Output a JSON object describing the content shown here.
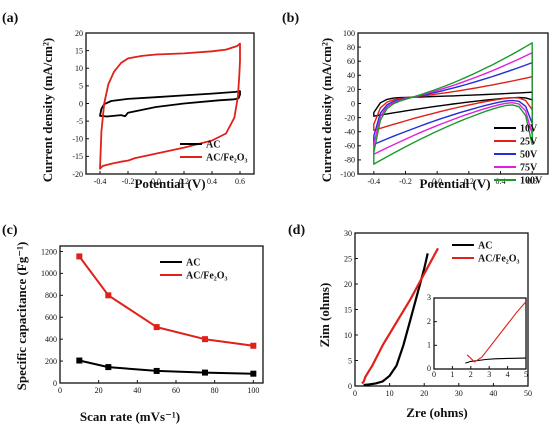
{
  "chart_data": [
    {
      "panel": "(a)",
      "type": "line",
      "xlabel": "Potential (V)",
      "ylabel": "Current density (mA/cm²)",
      "xlim": [
        -0.5,
        0.7
      ],
      "ylim": [
        -20,
        20
      ],
      "xticks": [
        -0.4,
        -0.2,
        0.0,
        0.2,
        0.4,
        0.6
      ],
      "yticks": [
        -20,
        -15,
        -10,
        -5,
        0,
        5,
        10,
        15,
        20
      ],
      "xtick_labels": [
        "-0.4",
        "-0.2",
        "0.0",
        "0.2",
        "0.4",
        "0.6"
      ],
      "ytick_labels": [
        "-20",
        "-15",
        "-10",
        "-5",
        "0",
        "5",
        "10",
        "15",
        "20"
      ],
      "legend_position": "bottom-right",
      "series": [
        {
          "name": "AC",
          "color": "#000000",
          "x": [
            -0.4,
            -0.39,
            -0.37,
            -0.32,
            -0.2,
            0.0,
            0.2,
            0.4,
            0.57,
            0.6,
            0.6,
            0.59,
            0.56,
            0.45,
            0.2,
            0.0,
            -0.2,
            -0.22,
            -0.25,
            -0.35,
            -0.4
          ],
          "y": [
            -3.5,
            -1.5,
            -0.2,
            0.7,
            1.3,
            1.8,
            2.3,
            2.8,
            3.3,
            3.5,
            2.5,
            1.5,
            1.2,
            0.9,
            0.0,
            -1.0,
            -2.6,
            -3.6,
            -3.3,
            -3.7,
            -3.5
          ]
        },
        {
          "name": "AC/Fe₂O₃",
          "color": "#e0201a",
          "x": [
            -0.4,
            -0.39,
            -0.37,
            -0.34,
            -0.3,
            -0.25,
            -0.2,
            -0.1,
            0.0,
            0.2,
            0.4,
            0.5,
            0.58,
            0.6,
            0.6,
            0.595,
            0.585,
            0.56,
            0.5,
            0.4,
            0.2,
            0.0,
            -0.15,
            -0.2,
            -0.25,
            -0.3,
            -0.38,
            -0.4
          ],
          "y": [
            -18.5,
            -8,
            0,
            5.5,
            9,
            11.5,
            12.8,
            13.5,
            13.9,
            14.2,
            14.8,
            15.3,
            16.3,
            17.0,
            12,
            8,
            2,
            -4,
            -8.5,
            -10.5,
            -12.5,
            -14.2,
            -15.5,
            -16.2,
            -16.5,
            -16.9,
            -17.7,
            -18.5
          ]
        }
      ]
    },
    {
      "panel": "(b)",
      "type": "line",
      "xlabel": "Potential (V)",
      "ylabel": "Current density (mA/cm²)",
      "xlim": [
        -0.5,
        0.7
      ],
      "ylim": [
        -100,
        100
      ],
      "xticks": [
        -0.4,
        -0.2,
        0.0,
        0.2,
        0.4,
        0.6
      ],
      "yticks": [
        -100,
        -80,
        -60,
        -40,
        -20,
        0,
        20,
        40,
        60,
        80,
        100
      ],
      "xtick_labels": [
        "-0.4",
        "-0.2",
        "0.0",
        "0.2",
        "0.4",
        "0.6"
      ],
      "ytick_labels": [
        "-100",
        "-80",
        "-60",
        "-40",
        "-20",
        "0",
        "20",
        "40",
        "60",
        "80",
        "100"
      ],
      "legend_position": "bottom-right",
      "series": [
        {
          "name": "10V",
          "color": "#000000",
          "bottom_start": -18,
          "top_start": 8,
          "top_end": 16,
          "bottom_end": 10
        },
        {
          "name": "25V",
          "color": "#e0201a",
          "bottom_start": -38,
          "top_start": 5,
          "top_end": 38,
          "bottom_end": 12
        },
        {
          "name": "50V",
          "color": "#1f2fd6",
          "bottom_start": -58,
          "top_start": 2,
          "top_end": 58,
          "bottom_end": 10
        },
        {
          "name": "75V",
          "color": "#e020e0",
          "bottom_start": -72,
          "top_start": 0,
          "top_end": 72,
          "bottom_end": 8
        },
        {
          "name": "100V",
          "color": "#1a9a2a",
          "bottom_start": -86,
          "top_start": -2,
          "top_end": 86,
          "bottom_end": 6
        }
      ]
    },
    {
      "panel": "(c)",
      "type": "line",
      "xlabel": "Scan rate (mVs⁻¹)",
      "ylabel": "Specific capacitance (Fg⁻¹)",
      "xlim": [
        0,
        105
      ],
      "ylim": [
        0,
        1250
      ],
      "xticks": [
        0,
        20,
        40,
        60,
        80,
        100
      ],
      "yticks": [
        0,
        200,
        400,
        600,
        800,
        1000,
        1200
      ],
      "xtick_labels": [
        "0",
        "20",
        "40",
        "60",
        "80",
        "100"
      ],
      "ytick_labels": [
        "0",
        "200",
        "400",
        "600",
        "800",
        "1000",
        "1200"
      ],
      "legend_position": "top-right",
      "x": [
        10,
        25,
        50,
        75,
        100
      ],
      "series": [
        {
          "name": "AC",
          "color": "#000000",
          "values": [
            205,
            145,
            110,
            95,
            85
          ]
        },
        {
          "name": "AC/Fe₂O₃",
          "color": "#e0201a",
          "values": [
            1155,
            800,
            510,
            400,
            340
          ]
        }
      ]
    },
    {
      "panel": "(d)",
      "type": "line",
      "xlabel": "Zre (ohms)",
      "ylabel": "Zim (ohms)",
      "xlim": [
        0,
        50
      ],
      "ylim": [
        0,
        30
      ],
      "xticks": [
        0,
        10,
        20,
        30,
        40,
        50
      ],
      "yticks": [
        0,
        5,
        10,
        15,
        20,
        25,
        30
      ],
      "xtick_labels": [
        "0",
        "10",
        "20",
        "30",
        "40",
        "50"
      ],
      "ytick_labels": [
        "0",
        "5",
        "10",
        "15",
        "20",
        "25",
        "30"
      ],
      "legend_position": "top-right",
      "series": [
        {
          "name": "AC",
          "color": "#000000",
          "x": [
            2.5,
            4,
            6,
            8,
            10,
            12,
            14,
            16,
            18,
            20,
            21
          ],
          "y": [
            0.2,
            0.3,
            0.5,
            0.9,
            2,
            4,
            8,
            13,
            18,
            23,
            26
          ]
        },
        {
          "name": "AC/Fe₂O₃",
          "color": "#e0201a",
          "x": [
            2,
            2.5,
            3,
            5,
            8,
            12,
            16,
            20,
            24
          ],
          "y": [
            0.5,
            0.8,
            1.8,
            4,
            8,
            12.5,
            17,
            22,
            27
          ]
        }
      ],
      "inset": {
        "xlim": [
          0,
          5
        ],
        "ylim": [
          0,
          3
        ],
        "xticks": [
          0,
          1,
          2,
          3,
          4,
          5
        ],
        "yticks": [
          0,
          1,
          2,
          3
        ],
        "xtick_labels": [
          "0",
          "1",
          "2",
          "3",
          "4",
          "5"
        ],
        "ytick_labels": [
          "0",
          "1",
          "2",
          "3"
        ],
        "series": [
          {
            "name": "AC",
            "color": "#000000",
            "x": [
              1.7,
              2.0,
              2.4,
              2.8,
              3.3,
              4.0,
              5.0
            ],
            "y": [
              0.25,
              0.32,
              0.36,
              0.4,
              0.43,
              0.45,
              0.46
            ]
          },
          {
            "name": "AC/Fe₂O₃",
            "color": "#e0201a",
            "x": [
              1.8,
              2.2,
              2.6,
              3.0,
              3.5,
              4.0,
              4.5,
              5.0
            ],
            "y": [
              0.6,
              0.3,
              0.5,
              0.9,
              1.4,
              1.9,
              2.4,
              2.85
            ]
          }
        ]
      }
    }
  ]
}
